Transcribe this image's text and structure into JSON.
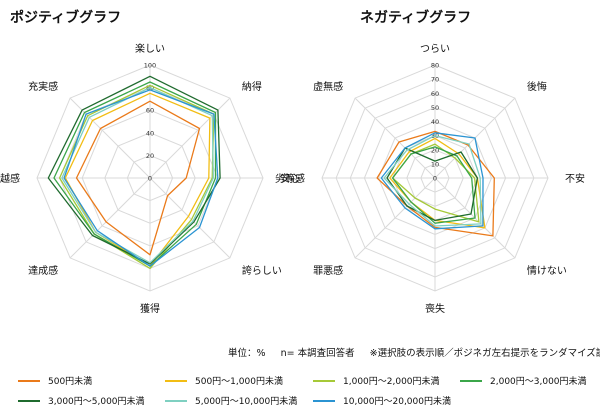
{
  "note": {
    "unit": "単位：%",
    "respondents": "n= 本調査回答者",
    "remark": "※選択肢の表示順／ポジネガ左右提示をランダマイズ設定"
  },
  "legend": [
    {
      "name": "500円未満",
      "color": "#ea7a1a"
    },
    {
      "name": "500円〜1,000円未満",
      "color": "#f2bd14"
    },
    {
      "name": "1,000円〜2,000円未満",
      "color": "#a6c938"
    },
    {
      "name": "2,000円〜3,000円未満",
      "color": "#3ba64a"
    },
    {
      "name": "3,000円〜5,000円未満",
      "color": "#1f6b2e"
    },
    {
      "name": "5,000円〜10,000円未満",
      "color": "#7fd0c1"
    },
    {
      "name": "10,000円〜20,000円未満",
      "color": "#2b94d2"
    }
  ],
  "chart_data": [
    {
      "type": "radar",
      "title": "ポジティブグラフ",
      "categories": [
        "楽しい",
        "納得",
        "安心",
        "誇らしい",
        "獲得",
        "達成感",
        "優越感",
        "充実感"
      ],
      "rlim": [
        0,
        100
      ],
      "ticks": [
        0,
        20,
        40,
        60,
        80,
        100
      ],
      "grid": true,
      "series": [
        {
          "name": "500円未満",
          "values": [
            68,
            62,
            32,
            22,
            68,
            55,
            65,
            62
          ]
        },
        {
          "name": "500円〜1,000円未満",
          "values": [
            75,
            75,
            52,
            48,
            78,
            68,
            75,
            72
          ]
        },
        {
          "name": "1,000円〜2,000円未満",
          "values": [
            82,
            80,
            55,
            52,
            80,
            70,
            80,
            78
          ]
        },
        {
          "name": "2,000円〜3,000円未満",
          "values": [
            85,
            82,
            58,
            58,
            78,
            70,
            85,
            82
          ]
        },
        {
          "name": "3,000円〜5,000円未満",
          "values": [
            90,
            85,
            62,
            55,
            76,
            72,
            90,
            85
          ]
        },
        {
          "name": "5,000円〜10,000円未満",
          "values": [
            80,
            78,
            56,
            54,
            75,
            68,
            78,
            76
          ]
        },
        {
          "name": "10,000円〜20,000円未満",
          "values": [
            78,
            80,
            60,
            62,
            78,
            66,
            76,
            80
          ]
        }
      ]
    },
    {
      "type": "radar",
      "title": "ネガティブグラフ",
      "categories": [
        "つらい",
        "後悔",
        "不安",
        "情けない",
        "喪失",
        "罪悪感",
        "劣等感",
        "虚無感"
      ],
      "rlim": [
        0,
        80
      ],
      "ticks": [
        0,
        10,
        20,
        30,
        40,
        50,
        60,
        70,
        80
      ],
      "grid": true,
      "series": [
        {
          "name": "500円未満",
          "values": [
            33,
            33,
            42,
            58,
            35,
            28,
            41,
            36
          ]
        },
        {
          "name": "500円〜1,000円未満",
          "values": [
            28,
            24,
            30,
            50,
            30,
            24,
            32,
            26
          ]
        },
        {
          "name": "1,000円〜2,000円未満",
          "values": [
            24,
            20,
            28,
            44,
            22,
            20,
            30,
            24
          ]
        },
        {
          "name": "2,000円〜3,000円未満",
          "values": [
            22,
            22,
            26,
            40,
            32,
            24,
            30,
            24
          ]
        },
        {
          "name": "3,000円〜5,000円未満",
          "values": [
            12,
            26,
            30,
            36,
            30,
            28,
            34,
            30
          ]
        },
        {
          "name": "5,000円〜10,000円未満",
          "values": [
            30,
            34,
            32,
            46,
            34,
            26,
            36,
            28
          ]
        },
        {
          "name": "10,000円〜20,000円未満",
          "values": [
            32,
            40,
            34,
            48,
            36,
            30,
            38,
            30
          ]
        }
      ]
    }
  ]
}
